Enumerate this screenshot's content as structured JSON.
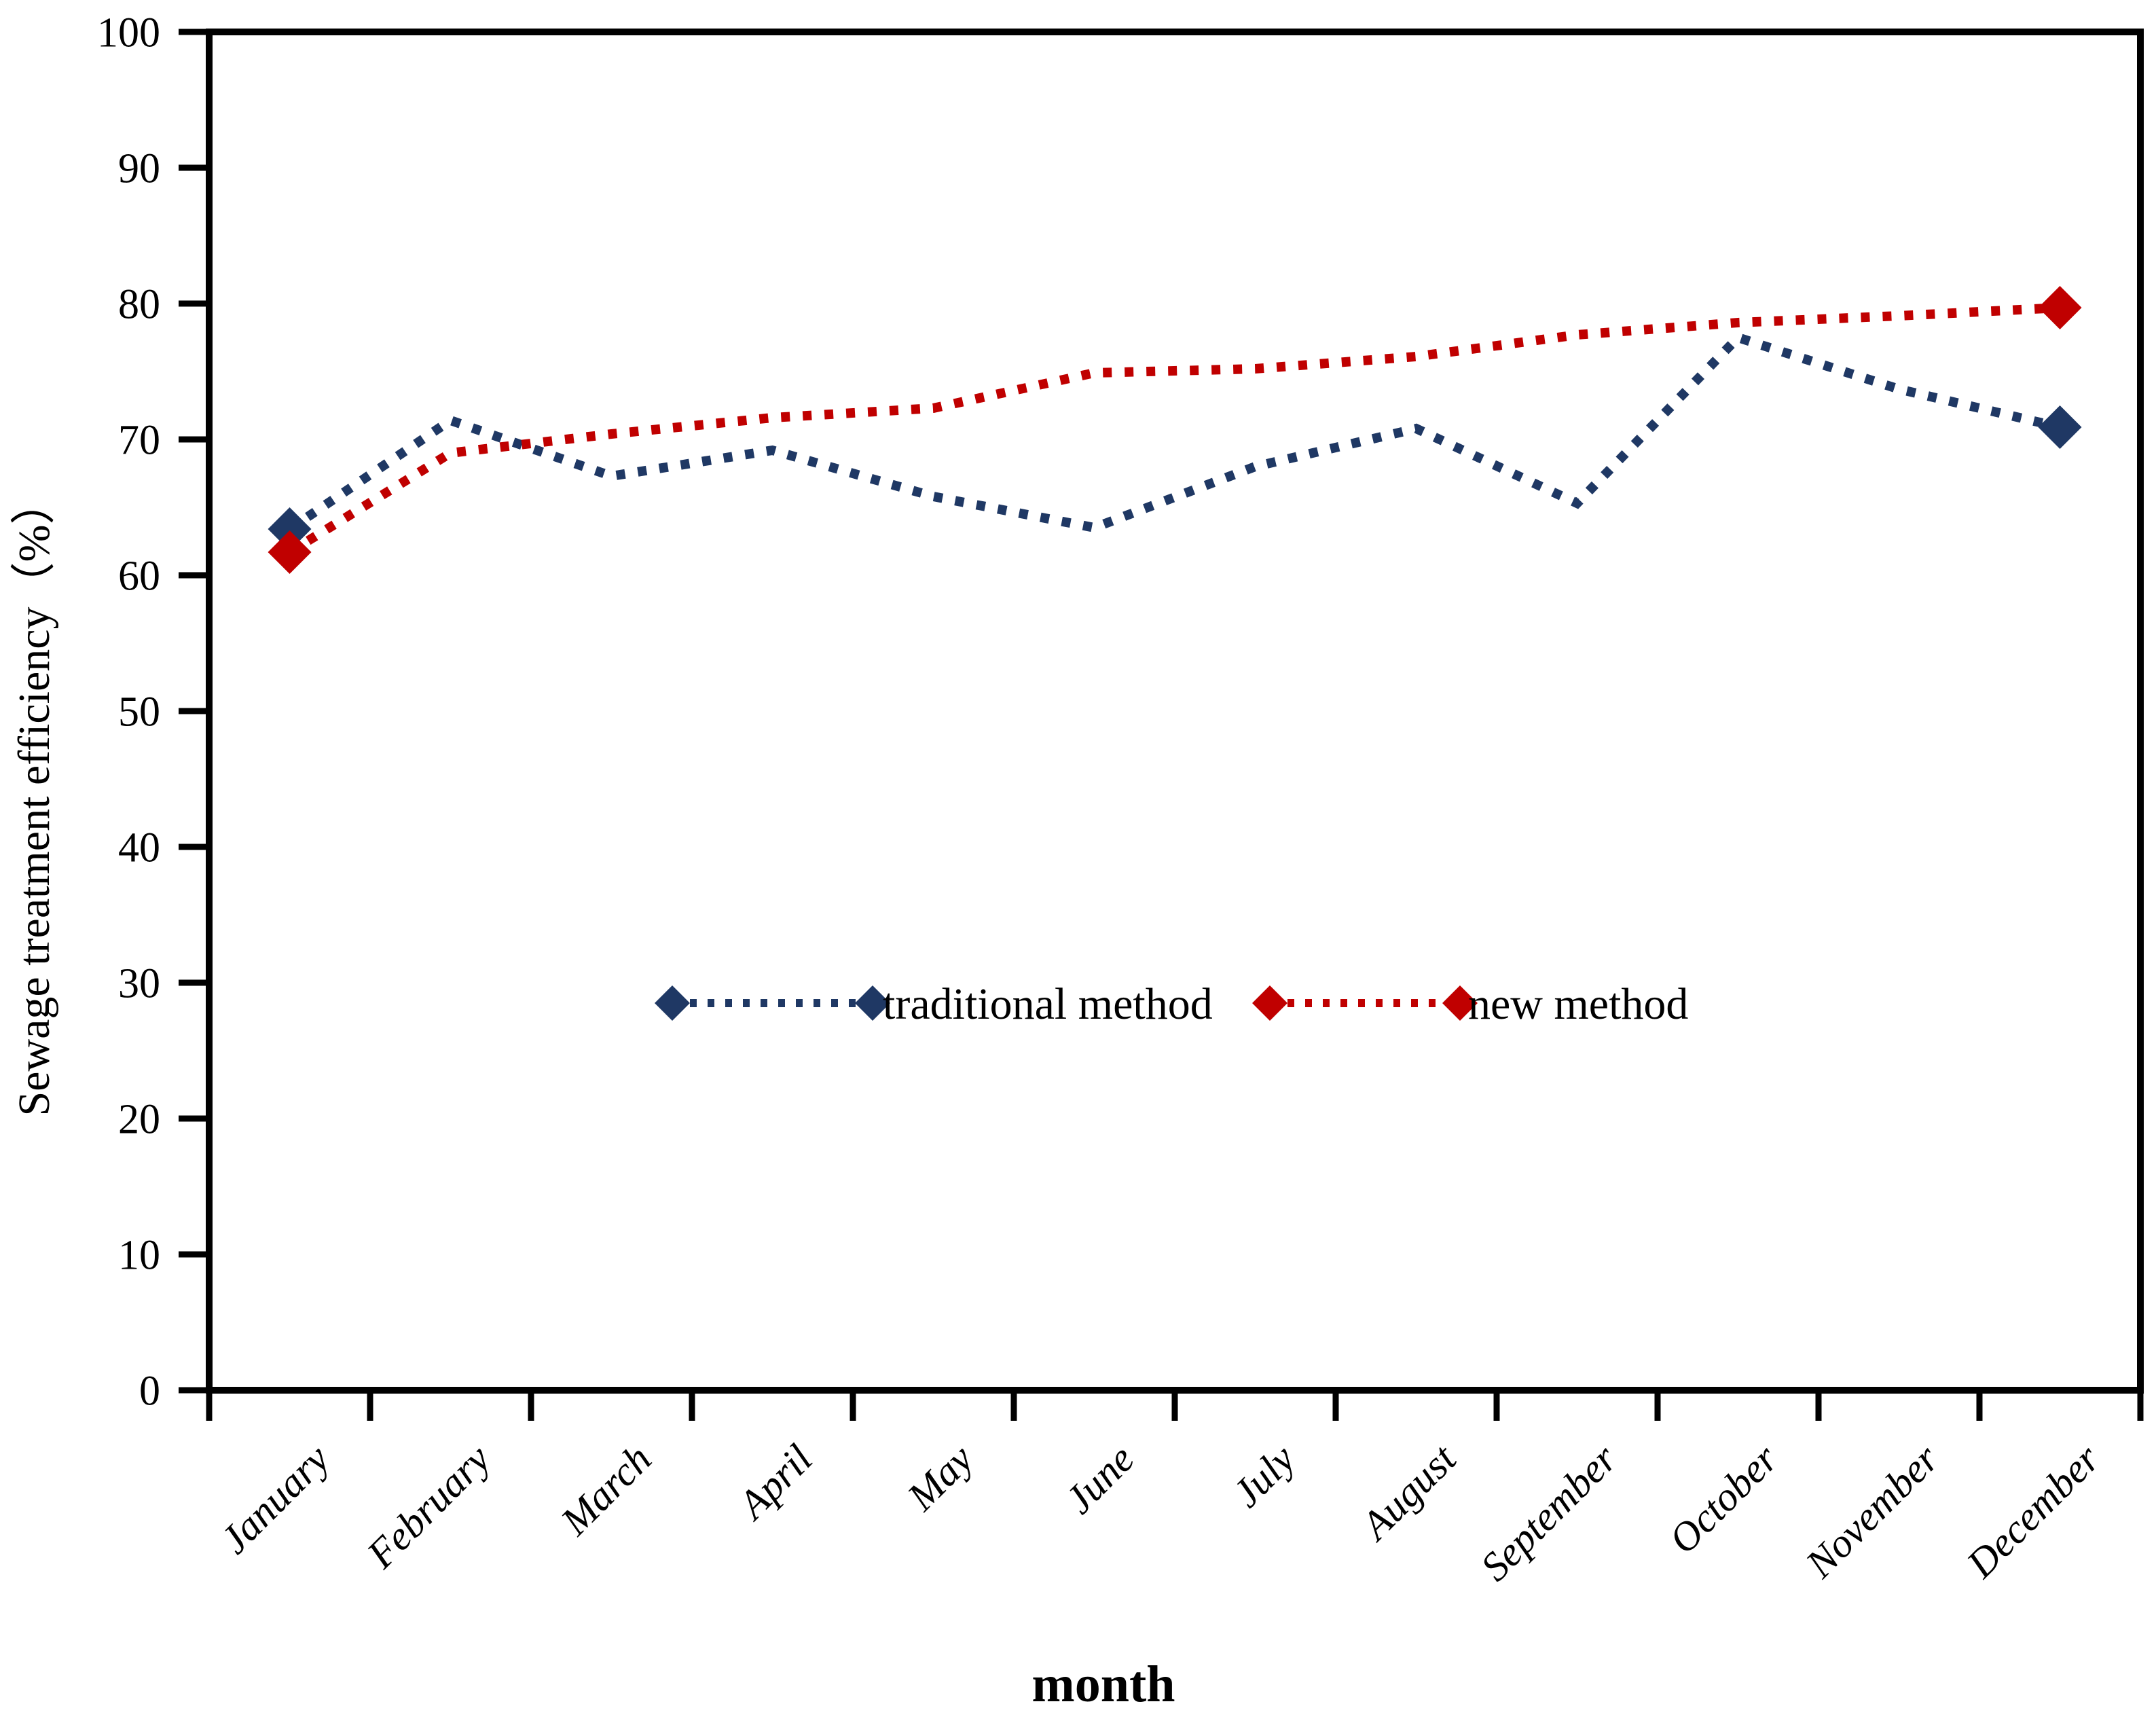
{
  "chart_data": {
    "type": "line",
    "title": "",
    "xlabel": "month",
    "ylabel": "Sewage treatment efficiency（%）",
    "categories": [
      "January",
      "February",
      "March",
      "April",
      "May",
      "June",
      "July",
      "August",
      "September",
      "October",
      "November",
      "December"
    ],
    "series": [
      {
        "name": "traditional method",
        "color": "#1F3864",
        "line_style": "dotted",
        "marker": "diamond",
        "values": [
          63.4,
          71.4,
          67.3,
          69.2,
          65.8,
          63.5,
          68.0,
          70.8,
          65.3,
          77.5,
          73.7,
          70.9
        ]
      },
      {
        "name": "new method",
        "color": "#C00000",
        "line_style": "dotted",
        "marker": "diamond",
        "values": [
          61.7,
          69.0,
          70.4,
          71.6,
          72.3,
          74.9,
          75.2,
          76.1,
          77.7,
          78.6,
          79.1,
          79.7
        ]
      }
    ],
    "ylim": [
      0,
      100
    ],
    "ytick_step": 10,
    "ytick_labels": [
      "0",
      "10",
      "20",
      "30",
      "40",
      "50",
      "60",
      "70",
      "80",
      "90",
      "100"
    ],
    "grid": false,
    "legend_position": "center-middle",
    "marker_style_note": "diamond markers visible on first and last data points only",
    "x_tick_label_rotation_deg": 45
  }
}
